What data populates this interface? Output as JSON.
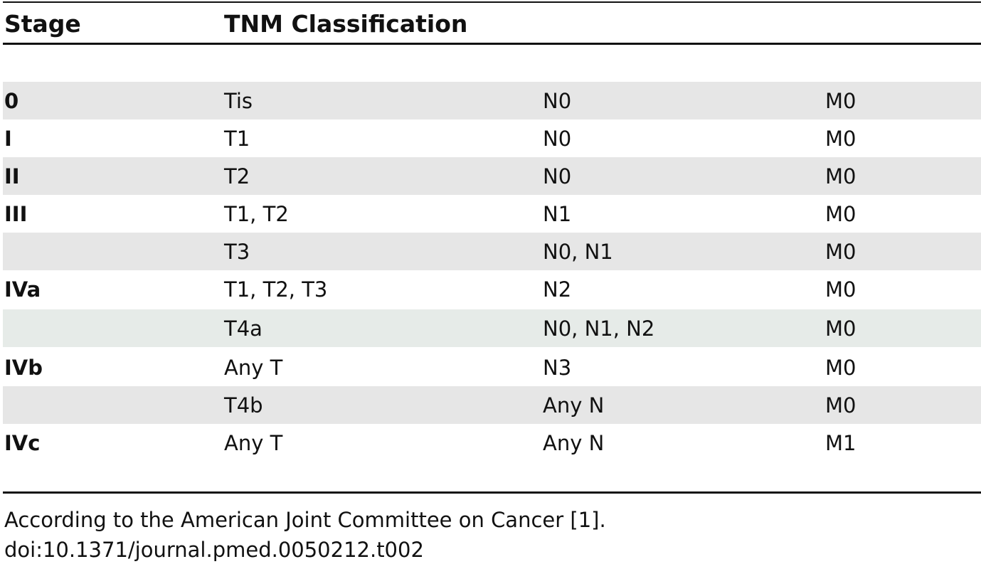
{
  "table": {
    "header": [
      "Stage",
      "TNM Classification"
    ],
    "rows": [
      [
        "0",
        "Tis",
        "N0",
        "M0"
      ],
      [
        "I",
        "T1",
        "N0",
        "M0"
      ],
      [
        "II",
        "T2",
        "N0",
        "M0"
      ],
      [
        "III",
        "T1, T2",
        "N1",
        "M0"
      ],
      [
        null,
        "T3",
        "N0, N1",
        "M0"
      ],
      [
        "IVa",
        "T1, T2, T3",
        "N2",
        "M0"
      ],
      [
        null,
        "T4a",
        "N0, N1, N2",
        "M0"
      ],
      [
        "IVb",
        "Any T",
        "N3",
        "M0"
      ],
      [
        null,
        "T4b",
        "Any N",
        "M0"
      ],
      [
        "IVc",
        "Any T",
        "Any N",
        "M1"
      ]
    ]
  },
  "footnotes": [
    "According to the American Joint Committee on Cancer [1].",
    "doi:10.1371/journal.pmed.0050212.t002"
  ]
}
